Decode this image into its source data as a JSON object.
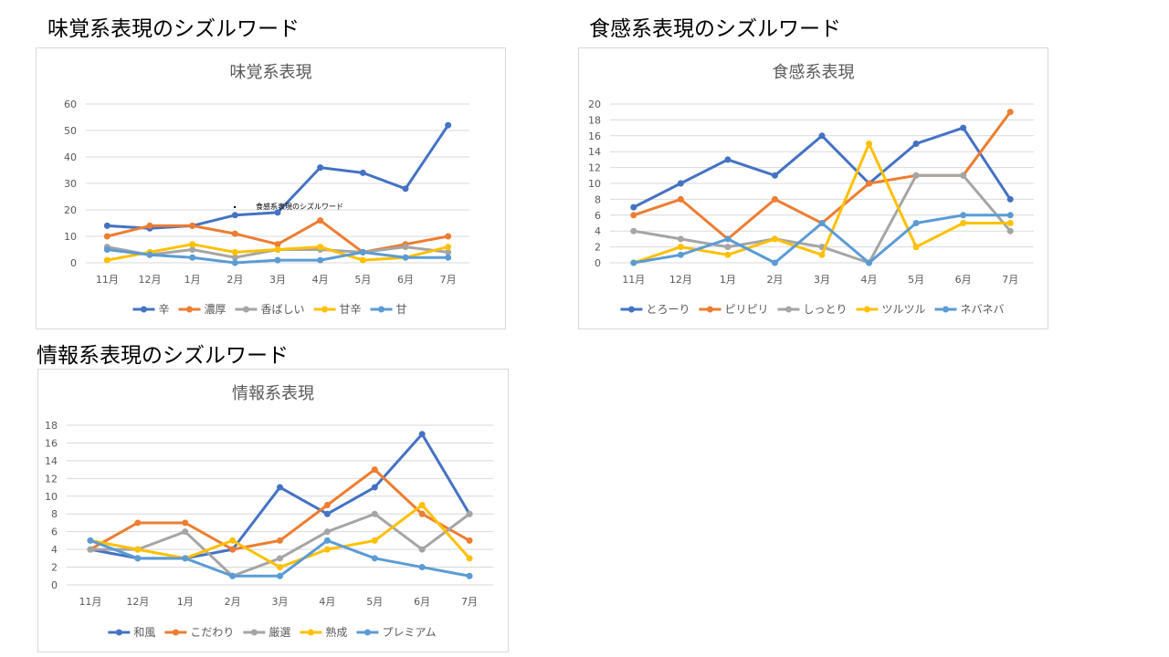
{
  "headings": {
    "taste": "味覚系表現のシズルワード",
    "texture": "食感系表現のシズルワード",
    "info": "情報系表現のシズルワード"
  },
  "overlay_note": "食感系表現のシズルワード",
  "chart_data": [
    {
      "type": "line",
      "title": "味覚系表現",
      "categories": [
        "11月",
        "12月",
        "1月",
        "2月",
        "3月",
        "4月",
        "5月",
        "6月",
        "7月"
      ],
      "ylim": [
        0,
        60
      ],
      "yticks": [
        0,
        10,
        20,
        30,
        40,
        50,
        60
      ],
      "grid": true,
      "legend_position": "bottom",
      "series": [
        {
          "name": "辛",
          "color": "#4472c4",
          "values": [
            14,
            13,
            14,
            18,
            19,
            36,
            34,
            28,
            52
          ]
        },
        {
          "name": "濃厚",
          "color": "#ed7d31",
          "values": [
            10,
            14,
            14,
            11,
            7,
            16,
            4,
            7,
            10
          ]
        },
        {
          "name": "香ばしい",
          "color": "#a5a5a5",
          "values": [
            6,
            3,
            5,
            2,
            5,
            5,
            4,
            6,
            4
          ]
        },
        {
          "name": "甘辛",
          "color": "#ffc000",
          "values": [
            1,
            4,
            7,
            4,
            5,
            6,
            1,
            2,
            6
          ]
        },
        {
          "name": "甘",
          "color": "#5b9bd5",
          "values": [
            5,
            3,
            2,
            0,
            1,
            1,
            4,
            2,
            2
          ]
        }
      ]
    },
    {
      "type": "line",
      "title": "食感系表現",
      "categories": [
        "11月",
        "12月",
        "1月",
        "2月",
        "3月",
        "4月",
        "5月",
        "6月",
        "7月"
      ],
      "ylim": [
        0,
        20
      ],
      "yticks": [
        0,
        2,
        4,
        6,
        8,
        10,
        12,
        14,
        16,
        18,
        20
      ],
      "grid": true,
      "legend_position": "bottom",
      "series": [
        {
          "name": "とろーり",
          "color": "#4472c4",
          "values": [
            7,
            10,
            13,
            11,
            16,
            10,
            15,
            17,
            8
          ]
        },
        {
          "name": "ピリピリ",
          "color": "#ed7d31",
          "values": [
            6,
            8,
            3,
            8,
            5,
            10,
            11,
            11,
            19
          ]
        },
        {
          "name": "しっとり",
          "color": "#a5a5a5",
          "values": [
            4,
            3,
            2,
            3,
            2,
            0,
            11,
            11,
            4
          ]
        },
        {
          "name": "ツルツル",
          "color": "#ffc000",
          "values": [
            0,
            2,
            1,
            3,
            1,
            15,
            2,
            5,
            5
          ]
        },
        {
          "name": "ネバネバ",
          "color": "#5b9bd5",
          "values": [
            0,
            1,
            3,
            0,
            5,
            0,
            5,
            6,
            6
          ]
        }
      ]
    },
    {
      "type": "line",
      "title": "情報系表現",
      "categories": [
        "11月",
        "12月",
        "1月",
        "2月",
        "3月",
        "4月",
        "5月",
        "6月",
        "7月"
      ],
      "ylim": [
        0,
        18
      ],
      "yticks": [
        0,
        2,
        4,
        6,
        8,
        10,
        12,
        14,
        16,
        18
      ],
      "grid": true,
      "legend_position": "bottom",
      "series": [
        {
          "name": "和風",
          "color": "#4472c4",
          "values": [
            4,
            3,
            3,
            4,
            11,
            8,
            11,
            17,
            8
          ]
        },
        {
          "name": "こだわり",
          "color": "#ed7d31",
          "values": [
            4,
            7,
            7,
            4,
            5,
            9,
            13,
            8,
            5
          ]
        },
        {
          "name": "厳選",
          "color": "#a5a5a5",
          "values": [
            4,
            4,
            6,
            1,
            3,
            6,
            8,
            4,
            8
          ]
        },
        {
          "name": "熟成",
          "color": "#ffc000",
          "values": [
            5,
            4,
            3,
            5,
            2,
            4,
            5,
            9,
            3
          ]
        },
        {
          "name": "プレミアム",
          "color": "#5b9bd5",
          "values": [
            5,
            3,
            3,
            1,
            1,
            5,
            3,
            2,
            1
          ]
        }
      ]
    }
  ]
}
